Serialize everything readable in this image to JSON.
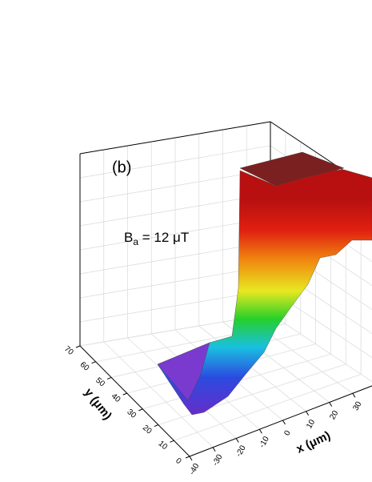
{
  "chart_data": {
    "type": "surface",
    "panel_label": "(b)",
    "annotation": {
      "main": "B",
      "subscript": "a",
      "rest": " = 12 μT"
    },
    "xlabel": "x (μm)",
    "ylabel": "y (μm)",
    "xlim": [
      -40,
      40
    ],
    "xticks": [
      -40,
      -30,
      -20,
      -10,
      0,
      10,
      20,
      30
    ],
    "ylim": [
      0,
      70
    ],
    "yticks": [
      0,
      10,
      20,
      30,
      40,
      50,
      60,
      70
    ],
    "grid": true
  }
}
